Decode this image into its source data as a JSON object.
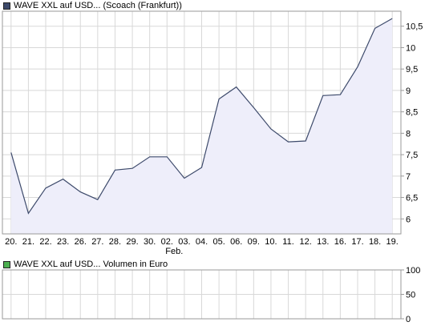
{
  "colors": {
    "price_line": "#3d4a6b",
    "price_fill": "#eeeefa",
    "price_swatch": "#3d4a6b",
    "volume_swatch": "#4caf50",
    "grid": "#d8d8d8",
    "frame": "#9a9a9a"
  },
  "chart_data": [
    {
      "type": "area",
      "legend": "WAVE XXL auf USD... (Scoach (Frankfurt))",
      "categories": [
        "20.",
        "21.",
        "22.",
        "23.",
        "26.",
        "27.",
        "28.",
        "29.",
        "30.",
        "02.",
        "03.",
        "04.",
        "05.",
        "06.",
        "09.",
        "10.",
        "11.",
        "12.",
        "13.",
        "16.",
        "17.",
        "18.",
        "19."
      ],
      "month_label": "Feb.",
      "month_label_under": "02.",
      "series": [
        {
          "name": "WAVE XXL auf USD...",
          "values": [
            7.55,
            6.13,
            6.72,
            6.93,
            6.63,
            6.45,
            7.14,
            7.18,
            7.45,
            7.45,
            6.95,
            7.2,
            8.8,
            9.08,
            8.6,
            8.1,
            7.8,
            7.82,
            8.88,
            8.9,
            9.55,
            10.45,
            10.68
          ]
        }
      ],
      "y_ticks": [
        "6",
        "6,5",
        "7",
        "7,5",
        "8",
        "8,5",
        "9",
        "9,5",
        "10",
        "10,5"
      ],
      "ylim": [
        5.65,
        10.85
      ],
      "grid": true
    },
    {
      "type": "bar",
      "legend": "WAVE XXL auf USD... Volumen in Euro",
      "categories": [
        "20.",
        "21.",
        "22.",
        "23.",
        "26.",
        "27.",
        "28.",
        "29.",
        "30.",
        "02.",
        "03.",
        "04.",
        "05.",
        "06.",
        "09.",
        "10.",
        "11.",
        "12.",
        "13.",
        "16.",
        "17.",
        "18.",
        "19."
      ],
      "series": [],
      "y_ticks": [
        "0",
        "50",
        "100"
      ],
      "ylim": [
        0,
        100
      ],
      "grid": true
    }
  ]
}
